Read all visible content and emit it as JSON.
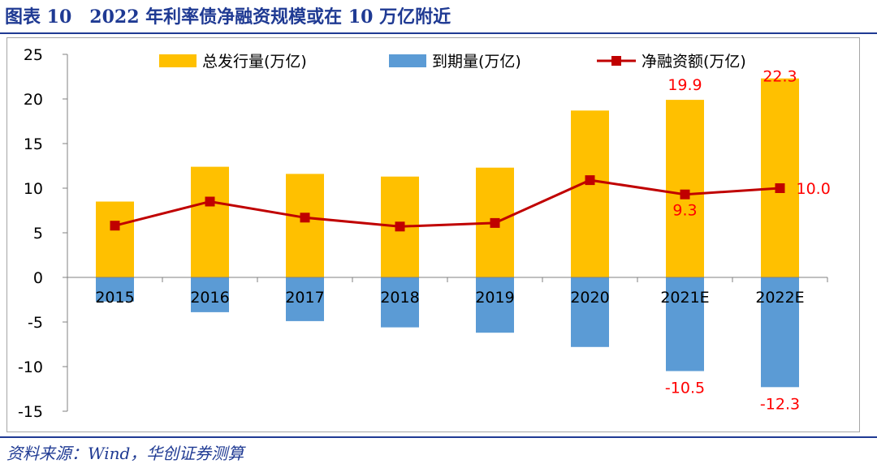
{
  "figure": {
    "number": "图表 10",
    "title": "2022 年利率债净融资规模或在 10 万亿附近",
    "source": "资料来源：Wind，华创证券测算"
  },
  "colors": {
    "issuance": "#ffc000",
    "maturity": "#5b9bd5",
    "net": "#c00000",
    "label": "#ff0000",
    "title": "#1f3a93"
  },
  "chart_data": {
    "type": "bar",
    "categories": [
      "2015",
      "2016",
      "2017",
      "2018",
      "2019",
      "2020",
      "2021E",
      "2022E"
    ],
    "series": [
      {
        "name": "总发行量(万亿)",
        "kind": "bar",
        "values": [
          8.5,
          12.4,
          11.6,
          11.3,
          12.3,
          18.7,
          19.9,
          22.3
        ]
      },
      {
        "name": "到期量(万亿)",
        "kind": "bar",
        "values": [
          -2.7,
          -3.9,
          -4.9,
          -5.6,
          -6.2,
          -7.8,
          -10.5,
          -12.3
        ]
      },
      {
        "name": "净融资额(万亿)",
        "kind": "line",
        "values": [
          5.8,
          8.5,
          6.7,
          5.7,
          6.1,
          10.9,
          9.3,
          10.0
        ]
      }
    ],
    "data_labels": [
      {
        "series": 0,
        "index": 6,
        "text": "19.9"
      },
      {
        "series": 0,
        "index": 7,
        "text": "22.3"
      },
      {
        "series": 1,
        "index": 6,
        "text": "-10.5"
      },
      {
        "series": 1,
        "index": 7,
        "text": "-12.3"
      },
      {
        "series": 2,
        "index": 6,
        "text": "9.3"
      },
      {
        "series": 2,
        "index": 7,
        "text": "10.0"
      }
    ],
    "y_ticks": [
      25,
      20,
      15,
      10,
      5,
      0,
      -5,
      -10,
      -15
    ],
    "ylim": [
      -15,
      25
    ],
    "xlabel": "",
    "ylabel": "",
    "grid": false,
    "legend_position": "top"
  }
}
